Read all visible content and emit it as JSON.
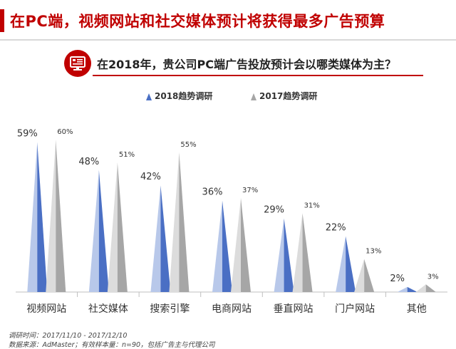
{
  "header": {
    "title": "在PC端，视频网站和社交媒体预计将获得最多广告预算"
  },
  "question": {
    "icon": "monitor-icon",
    "text": "在2018年，贵公司PC端广告投放预计会以哪类媒体为主？"
  },
  "colors": {
    "accent": "#c00000",
    "series_2018": "#4a6fc4",
    "series_2018_light": "#b8c8ea",
    "series_2017": "#a6a6a6",
    "series_2017_light": "#dcdcdc"
  },
  "chart_data": {
    "type": "bar",
    "categories": [
      "视频网站",
      "社交媒体",
      "搜索引擎",
      "电商网站",
      "垂直网站",
      "门户网站",
      "其他"
    ],
    "series": [
      {
        "name": "2018趋势调研",
        "values": [
          59,
          48,
          42,
          36,
          29,
          22,
          2
        ],
        "labels": [
          "59%",
          "48%",
          "42%",
          "36%",
          "29%",
          "22%",
          "2%"
        ]
      },
      {
        "name": "2017趋势调研",
        "values": [
          60,
          51,
          55,
          37,
          31,
          13,
          3
        ],
        "labels": [
          "60%",
          "51%",
          "55%",
          "37%",
          "31%",
          "13%",
          "3%"
        ]
      }
    ],
    "ylim": [
      0,
      60
    ],
    "grid": false,
    "legend": "top"
  },
  "footnotes": [
    "调研时间：2017/11/10 - 2017/12/10",
    "数据来源：AdMaster；有效样本量：n=90，包括广告主与代理公司"
  ]
}
